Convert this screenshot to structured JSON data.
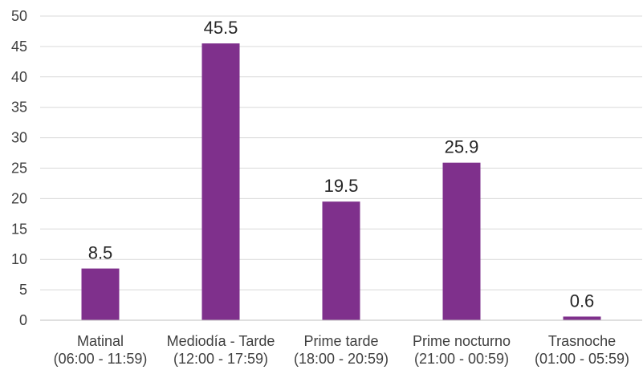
{
  "chart_data": {
    "type": "bar",
    "title": "",
    "xlabel": "",
    "ylabel": "",
    "categories": [
      [
        "Matinal",
        "(06:00 - 11:59)"
      ],
      [
        "Mediodía - Tarde",
        "(12:00 - 17:59)"
      ],
      [
        "Prime tarde",
        "(18:00 - 20:59)"
      ],
      [
        "Prime nocturno",
        "(21:00 - 00:59)"
      ],
      [
        "Trasnoche",
        "(01:00 - 05:59)"
      ]
    ],
    "values": [
      8.5,
      45.5,
      19.5,
      25.9,
      0.6
    ],
    "data_labels": [
      "8.5",
      "45.5",
      "19.5",
      "25.9",
      "0.6"
    ],
    "ylim": [
      0,
      50
    ],
    "yticks": [
      0,
      5,
      10,
      15,
      20,
      25,
      30,
      35,
      40,
      45,
      50
    ],
    "grid": true,
    "legend": "none",
    "colors": {
      "bar": "#7f308c",
      "grid": "#d9d9d9",
      "axis": "#bfbfbf",
      "tick_text": "#404040",
      "label_text": "#262626"
    }
  }
}
